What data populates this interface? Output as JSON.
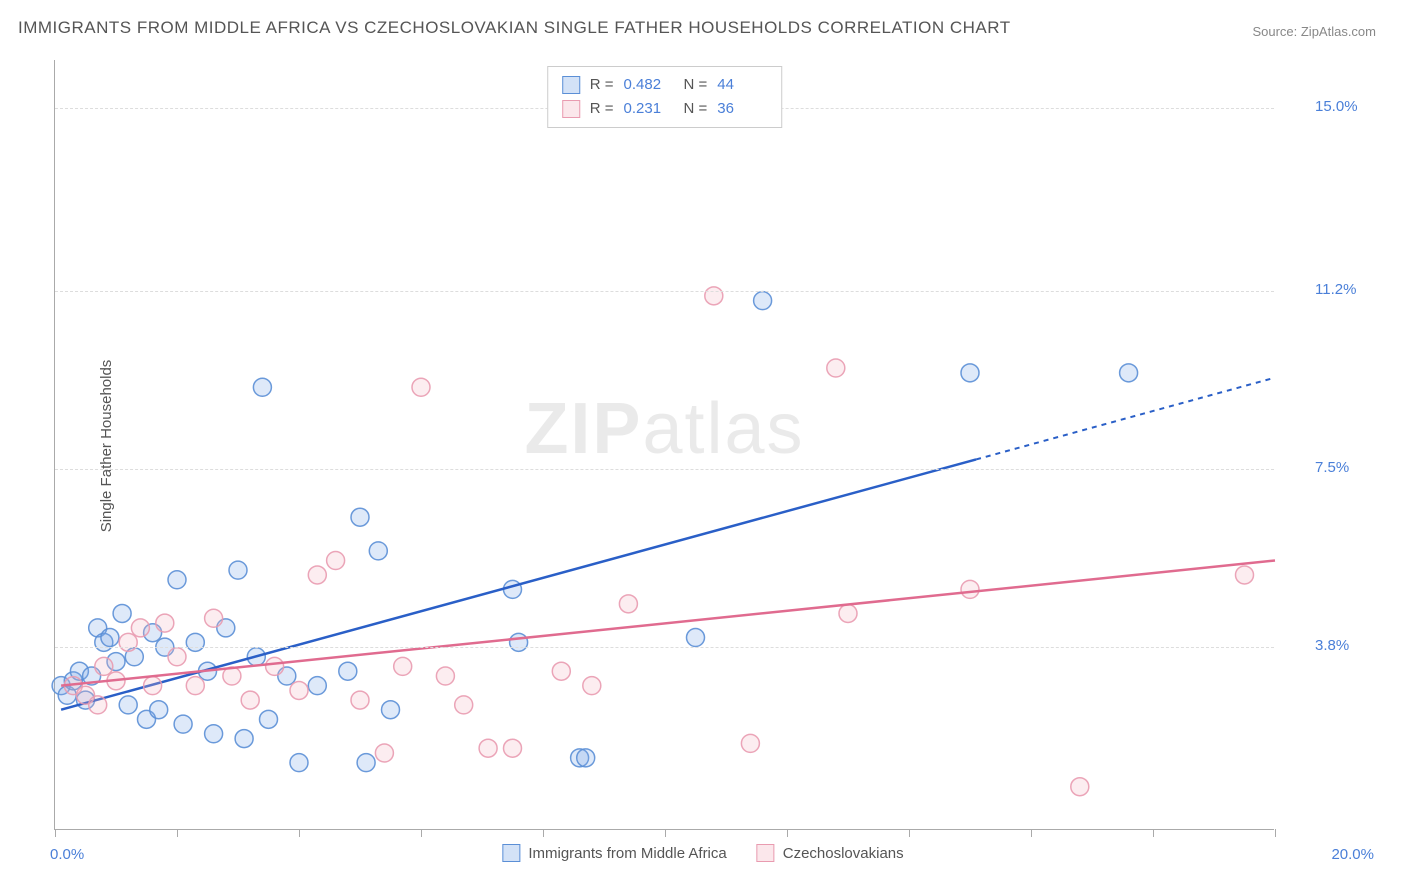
{
  "title": "IMMIGRANTS FROM MIDDLE AFRICA VS CZECHOSLOVAKIAN SINGLE FATHER HOUSEHOLDS CORRELATION CHART",
  "source_prefix": "Source: ",
  "source_name": "ZipAtlas.com",
  "y_axis_label": "Single Father Households",
  "watermark_a": "ZIP",
  "watermark_b": "atlas",
  "chart": {
    "type": "scatter",
    "xlim": [
      0,
      20
    ],
    "ylim": [
      0,
      16
    ],
    "x_min_label": "0.0%",
    "x_max_label": "20.0%",
    "x_tick_positions": [
      0,
      2,
      4,
      6,
      8,
      10,
      12,
      14,
      16,
      18,
      20
    ],
    "y_ticks": [
      {
        "v": 3.8,
        "label": "3.8%"
      },
      {
        "v": 7.5,
        "label": "7.5%"
      },
      {
        "v": 11.2,
        "label": "11.2%"
      },
      {
        "v": 15.0,
        "label": "15.0%"
      }
    ],
    "background_color": "#ffffff",
    "grid_color": "#dddddd",
    "axis_color": "#aaaaaa",
    "tick_label_color": "#4a7fd8",
    "marker_radius": 9,
    "marker_fill_opacity": 0.25,
    "marker_stroke_opacity": 0.9,
    "series": [
      {
        "key": "blue",
        "name": "Immigrants from Middle Africa",
        "color": "#7aa8e6",
        "stroke": "#5b8fd6",
        "line_color": "#2a5fc7",
        "R": "0.482",
        "N": "44",
        "trend": {
          "x1": 0.1,
          "y1": 2.5,
          "x2_solid": 15.1,
          "y2_solid": 7.7,
          "x2": 20.0,
          "y2": 9.4
        },
        "points": [
          [
            0.1,
            3.0
          ],
          [
            0.2,
            2.8
          ],
          [
            0.3,
            3.1
          ],
          [
            0.4,
            3.3
          ],
          [
            0.5,
            2.7
          ],
          [
            0.6,
            3.2
          ],
          [
            0.7,
            4.2
          ],
          [
            0.8,
            3.9
          ],
          [
            0.9,
            4.0
          ],
          [
            1.0,
            3.5
          ],
          [
            1.1,
            4.5
          ],
          [
            1.2,
            2.6
          ],
          [
            1.3,
            3.6
          ],
          [
            1.5,
            2.3
          ],
          [
            1.6,
            4.1
          ],
          [
            1.7,
            2.5
          ],
          [
            1.8,
            3.8
          ],
          [
            2.0,
            5.2
          ],
          [
            2.1,
            2.2
          ],
          [
            2.3,
            3.9
          ],
          [
            2.5,
            3.3
          ],
          [
            2.6,
            2.0
          ],
          [
            2.8,
            4.2
          ],
          [
            3.0,
            5.4
          ],
          [
            3.1,
            1.9
          ],
          [
            3.3,
            3.6
          ],
          [
            3.4,
            9.2
          ],
          [
            3.5,
            2.3
          ],
          [
            3.8,
            3.2
          ],
          [
            4.0,
            1.4
          ],
          [
            4.3,
            3.0
          ],
          [
            4.8,
            3.3
          ],
          [
            5.0,
            6.5
          ],
          [
            5.1,
            1.4
          ],
          [
            5.3,
            5.8
          ],
          [
            5.5,
            2.5
          ],
          [
            7.5,
            5.0
          ],
          [
            7.6,
            3.9
          ],
          [
            8.6,
            1.5
          ],
          [
            8.7,
            1.5
          ],
          [
            10.5,
            4.0
          ],
          [
            11.6,
            11.0
          ],
          [
            15.0,
            9.5
          ],
          [
            17.6,
            9.5
          ]
        ]
      },
      {
        "key": "pink",
        "name": "Czechoslovakians",
        "color": "#f4b6c4",
        "stroke": "#e99bb0",
        "line_color": "#e06b8f",
        "R": "0.231",
        "N": "36",
        "trend": {
          "x1": 0.1,
          "y1": 3.0,
          "x2_solid": 20.0,
          "y2_solid": 5.6,
          "x2": 20.0,
          "y2": 5.6
        },
        "points": [
          [
            0.3,
            3.0
          ],
          [
            0.5,
            2.8
          ],
          [
            0.7,
            2.6
          ],
          [
            0.8,
            3.4
          ],
          [
            1.0,
            3.1
          ],
          [
            1.2,
            3.9
          ],
          [
            1.4,
            4.2
          ],
          [
            1.6,
            3.0
          ],
          [
            1.8,
            4.3
          ],
          [
            2.0,
            3.6
          ],
          [
            2.3,
            3.0
          ],
          [
            2.6,
            4.4
          ],
          [
            2.9,
            3.2
          ],
          [
            3.2,
            2.7
          ],
          [
            3.6,
            3.4
          ],
          [
            4.0,
            2.9
          ],
          [
            4.3,
            5.3
          ],
          [
            4.6,
            5.6
          ],
          [
            5.0,
            2.7
          ],
          [
            5.4,
            1.6
          ],
          [
            5.7,
            3.4
          ],
          [
            6.0,
            9.2
          ],
          [
            6.4,
            3.2
          ],
          [
            6.7,
            2.6
          ],
          [
            7.1,
            1.7
          ],
          [
            7.5,
            1.7
          ],
          [
            8.3,
            3.3
          ],
          [
            8.8,
            3.0
          ],
          [
            9.4,
            4.7
          ],
          [
            10.8,
            11.1
          ],
          [
            11.4,
            1.8
          ],
          [
            12.8,
            9.6
          ],
          [
            13.0,
            4.5
          ],
          [
            15.0,
            5.0
          ],
          [
            16.8,
            0.9
          ],
          [
            19.5,
            5.3
          ]
        ]
      }
    ]
  },
  "legend": {
    "r_label": "R =",
    "n_label": "N ="
  }
}
